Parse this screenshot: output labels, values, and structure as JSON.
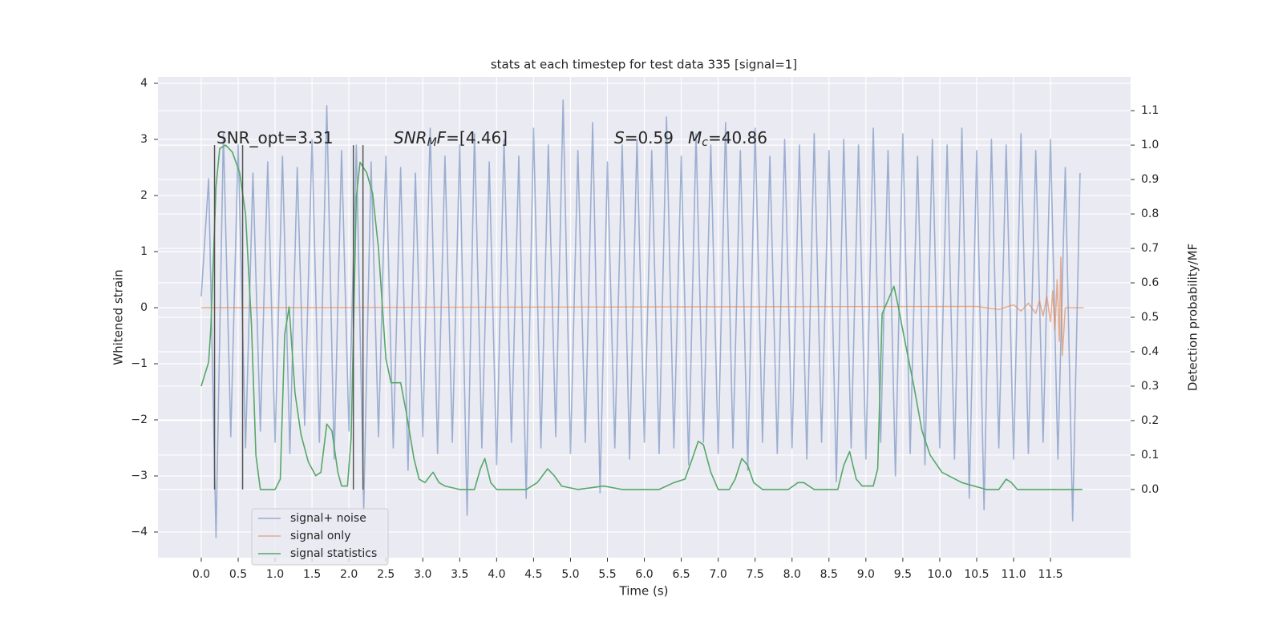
{
  "chart_data": {
    "type": "line",
    "title": "stats at each timestep for test data 335 [signal=1]",
    "xlabel": "Time (s)",
    "ylabel": "Whitened strain",
    "y2label": "Detection probability/MF",
    "xlim": [
      -0.586,
      12.585
    ],
    "ylim": [
      -4.457,
      4.114
    ],
    "y2lim": [
      -0.198,
      1.198
    ],
    "xticks": [
      {
        "value": 0,
        "label": "0.0"
      },
      {
        "value": 0.5,
        "label": "0.5"
      },
      {
        "value": 1,
        "label": "1.0"
      },
      {
        "value": 1.5,
        "label": "1.5"
      },
      {
        "value": 2,
        "label": "2.0"
      },
      {
        "value": 2.5,
        "label": "2.5"
      },
      {
        "value": 3,
        "label": "3.0"
      },
      {
        "value": 3.5,
        "label": "3.5"
      },
      {
        "value": 4,
        "label": "4.0"
      },
      {
        "value": 4.5,
        "label": "4.5"
      },
      {
        "value": 5,
        "label": "5.0"
      },
      {
        "value": 5.5,
        "label": "5.5"
      },
      {
        "value": 6,
        "label": "6.0"
      },
      {
        "value": 6.5,
        "label": "6.5"
      },
      {
        "value": 7,
        "label": "7.0"
      },
      {
        "value": 7.5,
        "label": "7.5"
      },
      {
        "value": 8,
        "label": "8.0"
      },
      {
        "value": 8.5,
        "label": "8.5"
      },
      {
        "value": 9,
        "label": "9.0"
      },
      {
        "value": 9.5,
        "label": "9.5"
      },
      {
        "value": 10,
        "label": "10.0"
      },
      {
        "value": 10.5,
        "label": "10.5"
      },
      {
        "value": 11,
        "label": "11.0"
      },
      {
        "value": 11.5,
        "label": "11.5"
      }
    ],
    "yticks": [
      {
        "value": -4,
        "label": "−4"
      },
      {
        "value": -3,
        "label": "−3"
      },
      {
        "value": -2,
        "label": "−2"
      },
      {
        "value": -1,
        "label": "−1"
      },
      0,
      1,
      2,
      3,
      4
    ],
    "y2ticks": [
      {
        "value": 0,
        "label": "0.0"
      },
      0.1,
      0.2,
      0.3,
      0.4,
      0.5,
      0.6,
      0.7,
      0.8,
      0.9,
      {
        "value": 1,
        "label": "1.0"
      },
      1.1
    ],
    "grid": true,
    "legend": "lower left",
    "series": [
      {
        "name": "signal+ noise",
        "color": "#4c72b0",
        "alpha": 0.5,
        "x": [
          0.0,
          0.1,
          0.2,
          0.3,
          0.4,
          0.5,
          0.6,
          0.7,
          0.8,
          0.9,
          1.0,
          1.1,
          1.2,
          1.3,
          1.4,
          1.5,
          1.6,
          1.7,
          1.8,
          1.9,
          2.0,
          2.1,
          2.2,
          2.3,
          2.4,
          2.5,
          2.6,
          2.7,
          2.8,
          2.9,
          3.0,
          3.1,
          3.2,
          3.3,
          3.4,
          3.5,
          3.6,
          3.7,
          3.8,
          3.9,
          4.0,
          4.1,
          4.2,
          4.3,
          4.4,
          4.5,
          4.6,
          4.7,
          4.8,
          4.9,
          5.0,
          5.1,
          5.2,
          5.3,
          5.4,
          5.5,
          5.6,
          5.7,
          5.8,
          5.9,
          6.0,
          6.1,
          6.2,
          6.3,
          6.4,
          6.5,
          6.6,
          6.7,
          6.8,
          6.9,
          7.0,
          7.1,
          7.2,
          7.3,
          7.4,
          7.5,
          7.6,
          7.7,
          7.8,
          7.9,
          8.0,
          8.1,
          8.2,
          8.3,
          8.4,
          8.5,
          8.6,
          8.7,
          8.8,
          8.9,
          9.0,
          9.1,
          9.2,
          9.3,
          9.4,
          9.5,
          9.6,
          9.7,
          9.8,
          9.9,
          10.0,
          10.1,
          10.2,
          10.3,
          10.4,
          10.5,
          10.6,
          10.7,
          10.8,
          10.9,
          11.0,
          11.1,
          11.2,
          11.3,
          11.4,
          11.5,
          11.6,
          11.7,
          11.8,
          11.9
        ],
        "values": [
          0.2,
          2.3,
          -4.1,
          3.1,
          -2.3,
          2.9,
          -2.5,
          2.4,
          -2.2,
          2.6,
          -2.4,
          2.7,
          -2.6,
          2.5,
          -2.1,
          3.0,
          -2.4,
          3.6,
          -2.7,
          2.8,
          -2.2,
          2.9,
          -3.6,
          2.6,
          -2.3,
          2.7,
          -2.5,
          2.5,
          -2.9,
          2.4,
          -2.3,
          3.2,
          -2.6,
          2.7,
          -2.4,
          2.9,
          -3.7,
          3.1,
          -2.5,
          2.6,
          -2.8,
          3.0,
          -2.4,
          2.7,
          -3.4,
          3.2,
          -2.5,
          2.9,
          -2.3,
          3.7,
          -2.6,
          2.8,
          -2.4,
          3.3,
          -3.3,
          2.6,
          -2.5,
          2.9,
          -2.7,
          3.0,
          -2.4,
          2.8,
          -2.6,
          3.4,
          -2.5,
          2.7,
          -2.8,
          3.1,
          -2.4,
          2.9,
          -2.6,
          3.3,
          -2.5,
          2.8,
          -2.9,
          3.2,
          -2.4,
          2.7,
          -2.6,
          3.0,
          -2.5,
          2.9,
          -2.7,
          3.1,
          -2.4,
          2.8,
          -3.1,
          3.0,
          -2.5,
          2.9,
          -2.7,
          3.2,
          -2.4,
          2.8,
          -3.0,
          3.1,
          -2.6,
          2.7,
          -2.8,
          3.0,
          -2.5,
          2.9,
          -2.7,
          3.2,
          -3.4,
          2.8,
          -3.6,
          3.0,
          -2.5,
          2.9,
          -2.7,
          3.1,
          -2.6,
          2.8,
          -2.4,
          3.0,
          -2.7,
          2.5,
          -3.8,
          2.4
        ]
      },
      {
        "name": "signal only",
        "color": "#dd8452",
        "alpha": 0.6,
        "x": [
          0,
          10.5,
          10.8,
          11.0,
          11.1,
          11.2,
          11.3,
          11.35,
          11.4,
          11.45,
          11.5,
          11.53,
          11.56,
          11.59,
          11.62,
          11.64,
          11.66,
          11.7,
          11.95
        ],
        "values": [
          0,
          0.02,
          -0.03,
          0.05,
          -0.06,
          0.08,
          -0.1,
          0.12,
          -0.15,
          0.2,
          -0.25,
          0.3,
          -0.4,
          0.5,
          -0.6,
          0.9,
          -0.85,
          0,
          0
        ]
      },
      {
        "name": "signal statistics",
        "color": "#55a868",
        "alpha": 1,
        "axis": "y2",
        "x": [
          0.0,
          0.1,
          0.13,
          0.2,
          0.25,
          0.33,
          0.42,
          0.52,
          0.6,
          0.68,
          0.74,
          0.8,
          0.9,
          1.0,
          1.07,
          1.13,
          1.19,
          1.27,
          1.35,
          1.45,
          1.55,
          1.62,
          1.7,
          1.77,
          1.85,
          1.9,
          1.98,
          2.03,
          2.1,
          2.15,
          2.24,
          2.32,
          2.4,
          2.5,
          2.57,
          2.7,
          2.78,
          2.88,
          2.95,
          3.03,
          3.1,
          3.14,
          3.22,
          3.3,
          3.5,
          3.7,
          3.78,
          3.84,
          3.92,
          4.0,
          4.4,
          4.55,
          4.69,
          4.78,
          4.88,
          5.1,
          5.45,
          5.7,
          6.2,
          6.4,
          6.55,
          6.65,
          6.73,
          6.8,
          6.9,
          7.0,
          7.15,
          7.23,
          7.32,
          7.4,
          7.48,
          7.6,
          7.95,
          8.08,
          8.16,
          8.3,
          8.62,
          8.7,
          8.78,
          8.87,
          8.95,
          9.1,
          9.16,
          9.22,
          9.38,
          9.43,
          9.52,
          9.65,
          9.76,
          9.87,
          10.03,
          10.3,
          10.63,
          10.8,
          10.9,
          10.97,
          11.05,
          11.3,
          11.93
        ],
        "values": [
          0.3,
          0.37,
          0.47,
          0.88,
          0.99,
          1.0,
          0.98,
          0.92,
          0.8,
          0.48,
          0.1,
          0,
          0,
          0,
          0.03,
          0.45,
          0.53,
          0.28,
          0.16,
          0.08,
          0.04,
          0.05,
          0.19,
          0.17,
          0.05,
          0.01,
          0.01,
          0.15,
          0.85,
          0.95,
          0.92,
          0.86,
          0.7,
          0.38,
          0.31,
          0.31,
          0.22,
          0.09,
          0.03,
          0.02,
          0.04,
          0.05,
          0.02,
          0.01,
          0,
          0,
          0.06,
          0.09,
          0.02,
          0,
          0,
          0.02,
          0.06,
          0.04,
          0.01,
          0,
          0.01,
          0,
          0,
          0.02,
          0.03,
          0.09,
          0.14,
          0.13,
          0.05,
          0,
          0,
          0.03,
          0.09,
          0.07,
          0.02,
          0,
          0,
          0.02,
          0.02,
          0,
          0,
          0.07,
          0.11,
          0.03,
          0.01,
          0.01,
          0.06,
          0.51,
          0.59,
          0.54,
          0.44,
          0.3,
          0.17,
          0.1,
          0.05,
          0.02,
          0,
          0,
          0.03,
          0.02,
          0,
          0,
          0
        ]
      }
    ],
    "vlines": {
      "x": [
        0.18,
        0.56,
        2.06,
        2.19
      ],
      "y2": [
        0,
        1
      ],
      "color": "#555555"
    },
    "annotations": [
      {
        "parts": [
          {
            "text": "SNR_opt=3.31"
          }
        ]
      },
      {
        "parts": [
          {
            "text": "SNR",
            "style": "italic"
          },
          {
            "text": "M",
            "style": "sub"
          },
          {
            "text": "F",
            "style": "italic"
          },
          {
            "text": "=[4.46]"
          }
        ]
      },
      {
        "parts": [
          {
            "text": "S",
            "style": "italic"
          },
          {
            "text": "=0.59"
          }
        ]
      },
      {
        "parts": [
          {
            "text": "M",
            "style": "italic"
          },
          {
            "text": "c",
            "style": "sub"
          },
          {
            "text": "=40.86"
          }
        ]
      }
    ]
  }
}
